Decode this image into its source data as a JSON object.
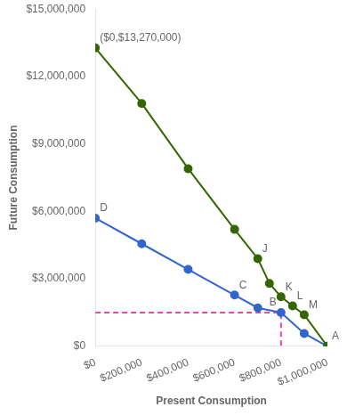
{
  "chart_data": {
    "type": "line",
    "xlabel": "Present Consumption",
    "ylabel": "Future Consumption",
    "xlim": [
      0,
      1000000
    ],
    "xticks": [
      {
        "value": 0,
        "label": "$0"
      },
      {
        "value": 200000,
        "label": "$200,000"
      },
      {
        "value": 400000,
        "label": "$400,000"
      },
      {
        "value": 600000,
        "label": "$600,000"
      },
      {
        "value": 800000,
        "label": "$800,000"
      },
      {
        "value": 1000000,
        "label": "$1,000,000"
      }
    ],
    "ylim": [
      0,
      15000000
    ],
    "yticks": [
      {
        "value": 0,
        "label": "$0"
      },
      {
        "value": 3000000,
        "label": "$3,000,000"
      },
      {
        "value": 6000000,
        "label": "$6,000,000"
      },
      {
        "value": 9000000,
        "label": "$9,000,000"
      },
      {
        "value": 12000000,
        "label": "$12,000,000"
      },
      {
        "value": 15000000,
        "label": "$15,000,000"
      }
    ],
    "grid": false,
    "series": [
      {
        "color": "#336600",
        "marker": "circle",
        "line_style": "solid",
        "x": [
          0,
          200000,
          400000,
          600000,
          700000,
          750000,
          800000,
          850000,
          900000,
          1000000
        ],
        "values": [
          13270000,
          10800000,
          7900000,
          5200000,
          3900000,
          2800000,
          2200000,
          1800000,
          1400000,
          0
        ]
      },
      {
        "color": "#3366cc",
        "marker": "circle",
        "line_style": "solid",
        "x": [
          0,
          200000,
          400000,
          600000,
          700000,
          800000,
          900000,
          1000000
        ],
        "values": [
          5700000,
          4560000,
          3420000,
          2280000,
          1710000,
          1500000,
          570000,
          0
        ]
      },
      {
        "color": "#ee44aa",
        "marker": "none",
        "line_style": "dashed",
        "x": [
          0,
          800000,
          800000
        ],
        "values": [
          1500000,
          1500000,
          0
        ]
      }
    ],
    "annotations": [
      {
        "text": "($0,$13,270,000)",
        "x": 0,
        "y": 13270000
      },
      {
        "text": "D",
        "x": 0,
        "y": 5700000
      },
      {
        "text": "C",
        "x": 600000,
        "y": 2280000
      },
      {
        "text": "B",
        "x": 800000,
        "y": 1500000
      },
      {
        "text": "A",
        "x": 1000000,
        "y": 0
      },
      {
        "text": "J",
        "x": 700000,
        "y": 3900000
      },
      {
        "text": "K",
        "x": 800000,
        "y": 2200000
      },
      {
        "text": "L",
        "x": 850000,
        "y": 1800000
      },
      {
        "text": "M",
        "x": 900000,
        "y": 1400000
      }
    ]
  }
}
